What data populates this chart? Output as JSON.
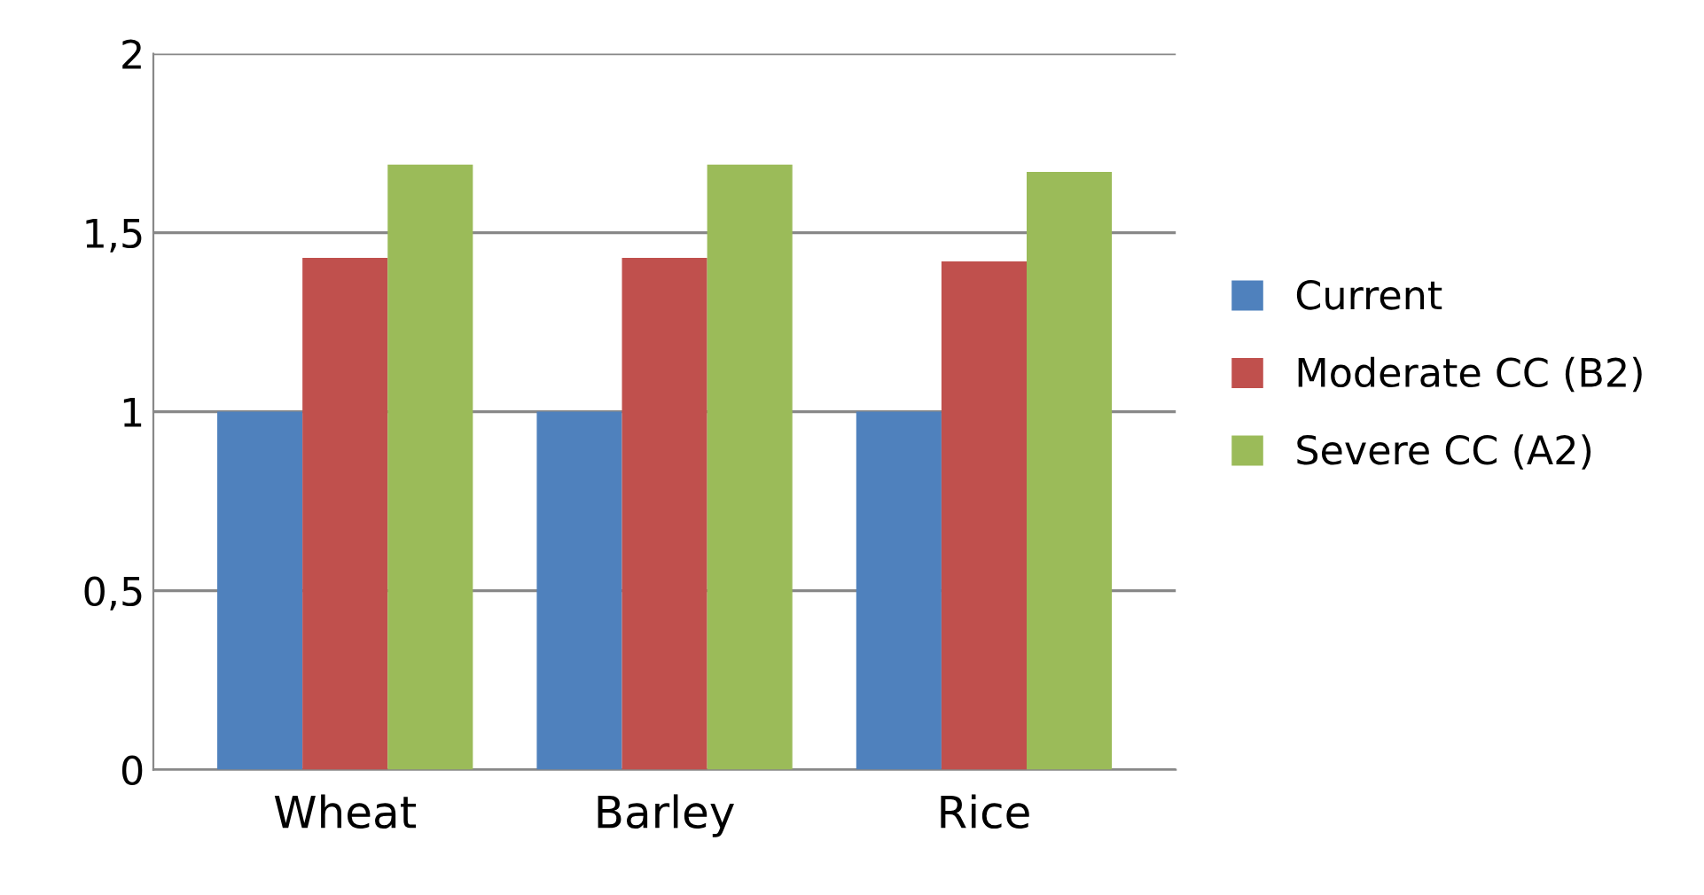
{
  "chart_data": {
    "type": "bar",
    "categories": [
      "Wheat",
      "Barley",
      "Rice"
    ],
    "series": [
      {
        "name": "Current",
        "color": "#4f81bd",
        "values": [
          1,
          1,
          1
        ]
      },
      {
        "name": "Moderate CC (B2)",
        "color": "#c0504d",
        "values": [
          1.43,
          1.43,
          1.42
        ]
      },
      {
        "name": "Severe CC (A2)",
        "color": "#9bbb59",
        "values": [
          1.69,
          1.69,
          1.67
        ]
      }
    ],
    "ylim": [
      0,
      2
    ],
    "yticks": [
      0,
      {
        "value": 0.5,
        "label": "0,5"
      },
      1,
      {
        "value": 1.5,
        "label": "1,5"
      },
      2
    ],
    "grid": "y",
    "legend": "right"
  }
}
